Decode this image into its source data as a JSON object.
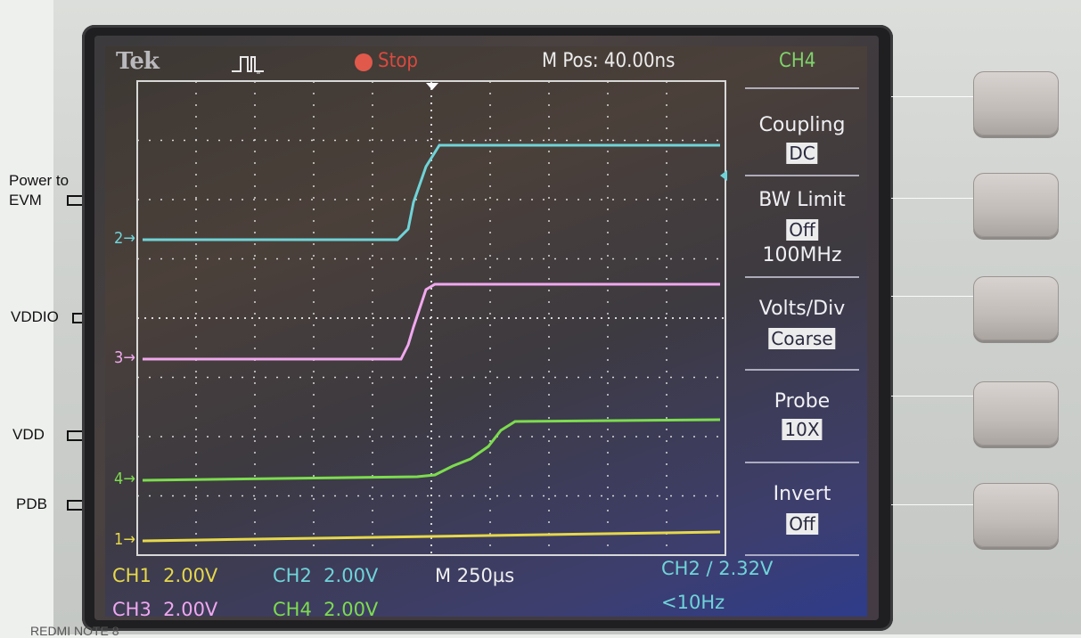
{
  "annotations": [
    {
      "label": "Power to\nEVM"
    },
    {
      "label": "VDDIO"
    },
    {
      "label": "VDD"
    },
    {
      "label": "PDB"
    }
  ],
  "scope": {
    "brand": "Tek",
    "status": "Stop",
    "m_pos": "M Pos: 40.00ns",
    "selected_channel": "CH4",
    "channel_markers": [
      "2",
      "3",
      "4",
      "1"
    ],
    "menu": {
      "coupling": {
        "title": "Coupling",
        "value": "DC"
      },
      "bw_limit": {
        "title": "BW Limit",
        "value": "Off",
        "sub": "100MHz"
      },
      "volts_div": {
        "title": "Volts/Div",
        "value": "Coarse"
      },
      "probe": {
        "title": "Probe",
        "value": "10X"
      },
      "invert": {
        "title": "Invert",
        "value": "Off"
      }
    },
    "footer": {
      "ch1": "CH1  2.00V",
      "ch2": "CH2  2.00V",
      "timebase": "M 250µs",
      "trigger": "CH2 ∕ 2.32V",
      "ch3": "CH3  2.00V",
      "ch4": "CH4  2.00V",
      "freq": "<10Hz"
    }
  },
  "colors": {
    "ch1": "#e6d84a",
    "ch2": "#6fd4d8",
    "ch3": "#f0a8ee",
    "ch4": "#7ddc4e",
    "grid": "#d8d8d8"
  },
  "watermark": "REDMI NOTE 8"
}
